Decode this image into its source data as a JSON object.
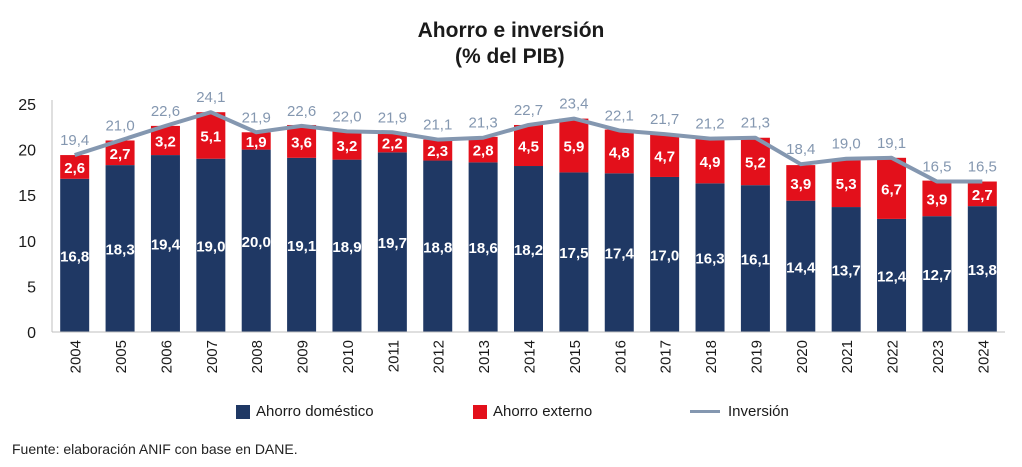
{
  "colors": {
    "domestic": "#1f3864",
    "external": "#e3101b",
    "line": "#8497b0",
    "text": "#1a1a1a"
  },
  "chart_data": {
    "type": "bar",
    "stacked": true,
    "title": "Ahorro e inversión",
    "subtitle": "(% del PIB)",
    "xlabel": "",
    "ylabel": "",
    "ylim": [
      0,
      25
    ],
    "yticks": [
      "0",
      "5",
      "10",
      "15",
      "20",
      "25"
    ],
    "categories": [
      "2004",
      "2005",
      "2006",
      "2007",
      "2008",
      "2009",
      "2010",
      "2011",
      "2012",
      "2013",
      "2014",
      "2015",
      "2016",
      "2017",
      "2018",
      "2019",
      "2020",
      "2021",
      "2022",
      "2023",
      "2024"
    ],
    "series": [
      {
        "name": "Ahorro doméstico",
        "type": "bar",
        "values": [
          16.8,
          18.3,
          19.4,
          19.0,
          20.0,
          19.1,
          18.9,
          19.7,
          18.8,
          18.6,
          18.2,
          17.5,
          17.4,
          17.0,
          16.3,
          16.1,
          14.4,
          13.7,
          12.4,
          12.7,
          13.8
        ],
        "labels": [
          "16,8",
          "18,3",
          "19,4",
          "19,0",
          "20,0",
          "19,1",
          "18,9",
          "19,7",
          "18,8",
          "18,6",
          "18,2",
          "17,5",
          "17,4",
          "17,0",
          "16,3",
          "16,1",
          "14,4",
          "13,7",
          "12,4",
          "12,7",
          "13,8"
        ]
      },
      {
        "name": "Ahorro externo",
        "type": "bar",
        "values": [
          2.6,
          2.7,
          3.2,
          5.1,
          1.9,
          3.6,
          3.2,
          2.2,
          2.3,
          2.8,
          4.5,
          5.9,
          4.8,
          4.7,
          4.9,
          5.2,
          3.9,
          5.3,
          6.7,
          3.9,
          2.7
        ],
        "labels": [
          "2,6",
          "2,7",
          "3,2",
          "5,1",
          "1,9",
          "3,6",
          "3,2",
          "2,2",
          "2,3",
          "2,8",
          "4,5",
          "5,9",
          "4,8",
          "4,7",
          "4,9",
          "5,2",
          "3,9",
          "5,3",
          "6,7",
          "3,9",
          "2,7"
        ]
      },
      {
        "name": "Inversión",
        "type": "line",
        "values": [
          19.4,
          21.0,
          22.6,
          24.1,
          21.9,
          22.6,
          22.0,
          21.9,
          21.1,
          21.3,
          22.7,
          23.4,
          22.1,
          21.7,
          21.2,
          21.3,
          18.4,
          19.0,
          19.1,
          16.5,
          16.5
        ],
        "labels": [
          "19,4",
          "21,0",
          "22,6",
          "24,1",
          "21,9",
          "22,6",
          "22,0",
          "21,9",
          "21,1",
          "21,3",
          "22,7",
          "23,4",
          "22,1",
          "21,7",
          "21,2",
          "21,3",
          "18,4",
          "19,0",
          "19,1",
          "16,5",
          "16,5"
        ]
      }
    ],
    "legend_position": "bottom",
    "grid": false
  },
  "legend": {
    "domestic": "Ahorro doméstico",
    "external": "Ahorro externo",
    "investment": "Inversión"
  },
  "source": "Fuente: elaboración ANIF con base en DANE."
}
